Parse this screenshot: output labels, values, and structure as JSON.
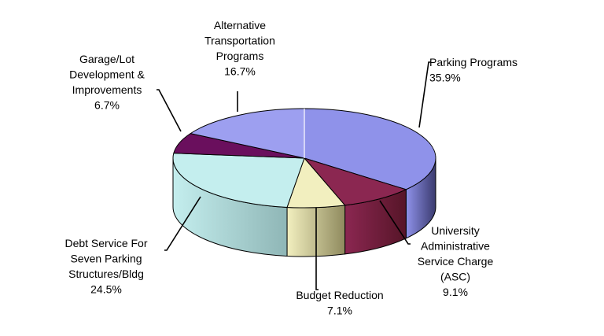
{
  "chart_data": {
    "type": "pie",
    "three_d": true,
    "legend": "none",
    "slices": [
      {
        "lines": [
          "Parking Programs"
        ],
        "pct_label": "35.9%",
        "value": 35.9,
        "color": "#8f92ea",
        "side": "#3a3a6e",
        "text_anchor": "start"
      },
      {
        "lines": [
          "University",
          "Administrative",
          "Service Charge",
          "(ASC)"
        ],
        "pct_label": "9.1%",
        "value": 9.1,
        "color": "#8b2751",
        "side": "#561528",
        "text_anchor": "middle"
      },
      {
        "lines": [
          "Budget Reduction"
        ],
        "pct_label": "7.1%",
        "value": 7.1,
        "color": "#f2efbf",
        "side": "#8f8a5e",
        "text_anchor": "middle"
      },
      {
        "lines": [
          "Debt Service For",
          "Seven Parking",
          "Structures/Bldg"
        ],
        "pct_label": "24.5%",
        "value": 24.5,
        "color": "#c4eeee",
        "side": "#8fb6b6",
        "text_anchor": "middle"
      },
      {
        "lines": [
          "Garage/Lot",
          "Development  &",
          "Improvements"
        ],
        "pct_label": "6.7%",
        "value": 6.7,
        "color": "#6a0f5d",
        "side": "#3d0837",
        "text_anchor": "middle"
      },
      {
        "lines": [
          "Alternative",
          "Transportation",
          "Programs"
        ],
        "pct_label": "16.7%",
        "value": 16.7,
        "color": "#9d9ff0",
        "side": "#5a5ca8",
        "text_anchor": "middle"
      }
    ]
  }
}
